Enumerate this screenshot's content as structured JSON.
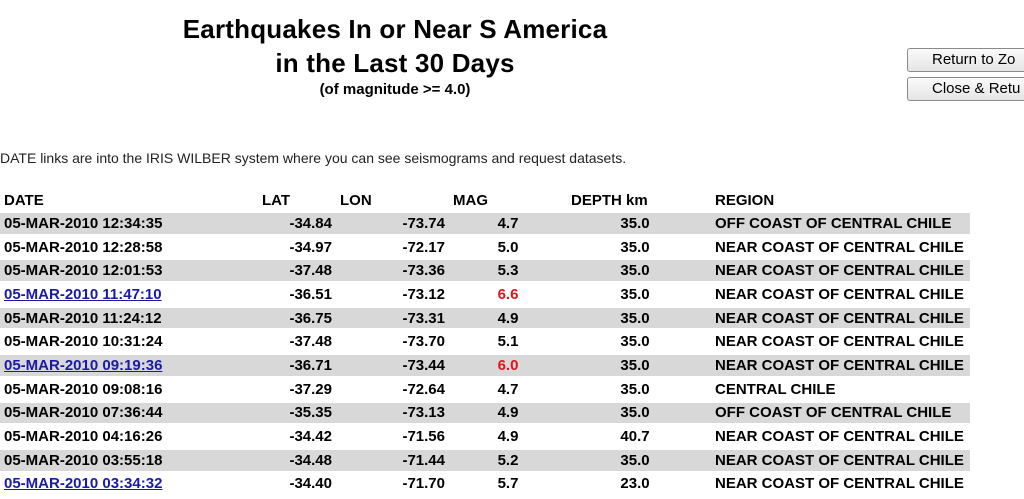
{
  "header": {
    "title_line1": "Earthquakes In or Near S America",
    "title_line2": "in the Last 30 Days",
    "subtitle": "(of magnitude >= 4.0)"
  },
  "buttons": {
    "return_label": "Return to Zo",
    "close_label": "Close & Retu"
  },
  "intro": "DATE links are into the IRIS WILBER system where you can see seismograms and request datasets.",
  "table": {
    "columns": [
      "DATE",
      "LAT",
      "LON",
      "MAG",
      "DEPTH km",
      "REGION"
    ],
    "rows": [
      {
        "date": "05-MAR-2010 12:34:35",
        "lat": "-34.84",
        "lon": "-73.74",
        "mag": "4.7",
        "depth": "35.0",
        "region": "OFF COAST OF CENTRAL CHILE",
        "link": false,
        "high": false
      },
      {
        "date": "05-MAR-2010 12:28:58",
        "lat": "-34.97",
        "lon": "-72.17",
        "mag": "5.0",
        "depth": "35.0",
        "region": "NEAR COAST OF CENTRAL CHILE",
        "link": false,
        "high": false
      },
      {
        "date": "05-MAR-2010 12:01:53",
        "lat": "-37.48",
        "lon": "-73.36",
        "mag": "5.3",
        "depth": "35.0",
        "region": "NEAR COAST OF CENTRAL CHILE",
        "link": false,
        "high": false
      },
      {
        "date": "05-MAR-2010 11:47:10",
        "lat": "-36.51",
        "lon": "-73.12",
        "mag": "6.6",
        "depth": "35.0",
        "region": "NEAR COAST OF CENTRAL CHILE",
        "link": true,
        "high": true
      },
      {
        "date": "05-MAR-2010 11:24:12",
        "lat": "-36.75",
        "lon": "-73.31",
        "mag": "4.9",
        "depth": "35.0",
        "region": "NEAR COAST OF CENTRAL CHILE",
        "link": false,
        "high": false
      },
      {
        "date": "05-MAR-2010 10:31:24",
        "lat": "-37.48",
        "lon": "-73.70",
        "mag": "5.1",
        "depth": "35.0",
        "region": "NEAR COAST OF CENTRAL CHILE",
        "link": false,
        "high": false
      },
      {
        "date": "05-MAR-2010 09:19:36",
        "lat": "-36.71",
        "lon": "-73.44",
        "mag": "6.0",
        "depth": "35.0",
        "region": "NEAR COAST OF CENTRAL CHILE",
        "link": true,
        "high": true
      },
      {
        "date": "05-MAR-2010 09:08:16",
        "lat": "-37.29",
        "lon": "-72.64",
        "mag": "4.7",
        "depth": "35.0",
        "region": "CENTRAL CHILE",
        "link": false,
        "high": false
      },
      {
        "date": "05-MAR-2010 07:36:44",
        "lat": "-35.35",
        "lon": "-73.13",
        "mag": "4.9",
        "depth": "35.0",
        "region": "OFF COAST OF CENTRAL CHILE",
        "link": false,
        "high": false
      },
      {
        "date": "05-MAR-2010 04:16:26",
        "lat": "-34.42",
        "lon": "-71.56",
        "mag": "4.9",
        "depth": "40.7",
        "region": "NEAR COAST OF CENTRAL CHILE",
        "link": false,
        "high": false
      },
      {
        "date": "05-MAR-2010 03:55:18",
        "lat": "-34.48",
        "lon": "-71.44",
        "mag": "5.2",
        "depth": "35.0",
        "region": "NEAR COAST OF CENTRAL CHILE",
        "link": false,
        "high": false
      },
      {
        "date": "05-MAR-2010 03:34:32",
        "lat": "-34.40",
        "lon": "-71.70",
        "mag": "5.7",
        "depth": "23.0",
        "region": "NEAR COAST OF CENTRAL CHILE",
        "link": true,
        "high": false
      }
    ]
  },
  "colors": {
    "link": "#1a1aa6",
    "high_magnitude": "#e0141e",
    "row_shade": "#d8d8d8"
  }
}
